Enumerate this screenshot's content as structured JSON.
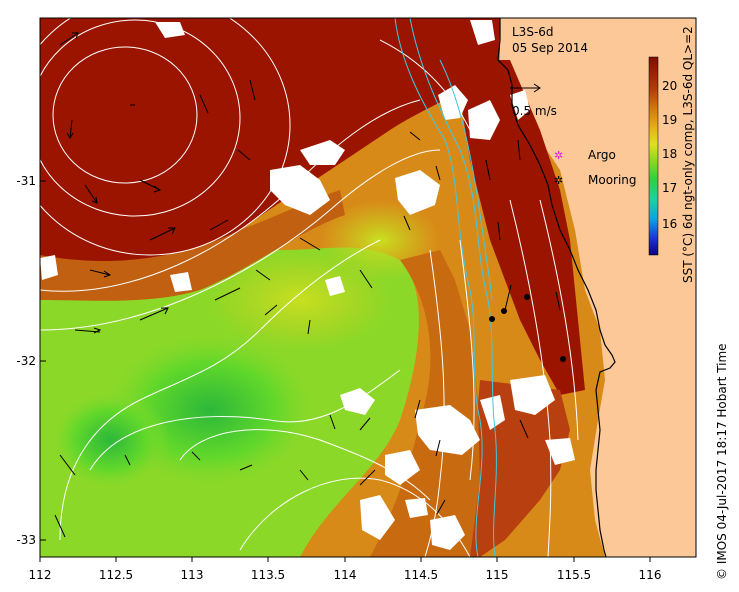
{
  "map": {
    "product": "L3S-6d",
    "date": "05 Sep 2014",
    "speed_label": "0.5 m/s",
    "credit": "© IMOS 04-Jul-2017 18:17 Hobart Time",
    "x_ticks": [
      "112",
      "112.5",
      "113",
      "113.5",
      "114",
      "114.5",
      "115",
      "115.5",
      "116"
    ],
    "y_ticks": [
      "-31",
      "-32",
      "-33"
    ],
    "legend": {
      "argo_label": "Argo",
      "mooring_label": "Mooring",
      "argo_color": "#e020e0",
      "mooring_color": "#000000"
    },
    "colorbar": {
      "title": "SST (°C) 6d ngt-only comp, L3S-6d QL>=2",
      "ticks": [
        "20",
        "19",
        "18",
        "17",
        "16"
      ],
      "min": 15.5,
      "max": 20.8
    },
    "colors": {
      "land": "#fcc898",
      "warm": "#9a1400",
      "mid": "#d87a10",
      "cool": "#5ee020",
      "coast": "#000000",
      "bathymetry": "#40c8e0",
      "streamline": "#ffffff"
    }
  }
}
